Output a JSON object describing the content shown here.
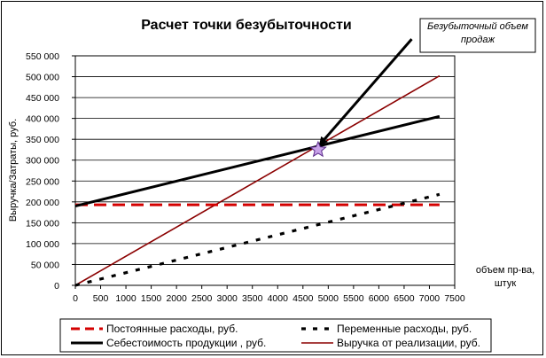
{
  "chart_data": {
    "type": "line",
    "title": "Расчет точки безубыточности",
    "ylabel": "Выручка/Затраты, руб.",
    "xlabel_lines": [
      "объем пр-ва,",
      "штук"
    ],
    "xlim": [
      0,
      7500
    ],
    "ylim": [
      0,
      550000
    ],
    "xticks": [
      0,
      500,
      1000,
      1500,
      2000,
      2500,
      3000,
      3500,
      4000,
      4500,
      5000,
      5500,
      6000,
      6500,
      7000,
      7500
    ],
    "yticks": [
      0,
      50000,
      100000,
      150000,
      200000,
      250000,
      300000,
      350000,
      400000,
      450000,
      500000,
      550000
    ],
    "ytick_labels": [
      "0",
      "50 000",
      "100 000",
      "150 000",
      "200 000",
      "250 000",
      "300 000",
      "350 000",
      "400 000",
      "450 000",
      "500 000",
      "550 000"
    ],
    "grid": "horizontal",
    "series": [
      {
        "name": "Постоянные расходы, руб.",
        "x": [
          0,
          7200
        ],
        "y": [
          193000,
          193000
        ],
        "color": "#d40000",
        "style": "dashed-thick"
      },
      {
        "name": "Переменные расходы, руб.",
        "x": [
          0,
          7200
        ],
        "y": [
          0,
          218000
        ],
        "color": "#000000",
        "style": "dotted-thick"
      },
      {
        "name": "Себестоимость продукции , руб.",
        "x": [
          0,
          7200
        ],
        "y": [
          190000,
          405000
        ],
        "color": "#000000",
        "style": "solid-thick"
      },
      {
        "name": "Выручка от реализации, руб.",
        "x": [
          0,
          7200
        ],
        "y": [
          0,
          502000
        ],
        "color": "#8b0000",
        "style": "solid-thin"
      }
    ],
    "annotation": {
      "text_lines": [
        "Безубыточный объем",
        "продаж"
      ],
      "point": {
        "x": 4800,
        "y": 325000
      },
      "arrow_from": {
        "x": 6650,
        "y": 590000
      },
      "marker_color": "#c8a2e8"
    },
    "legend_position": "bottom"
  }
}
